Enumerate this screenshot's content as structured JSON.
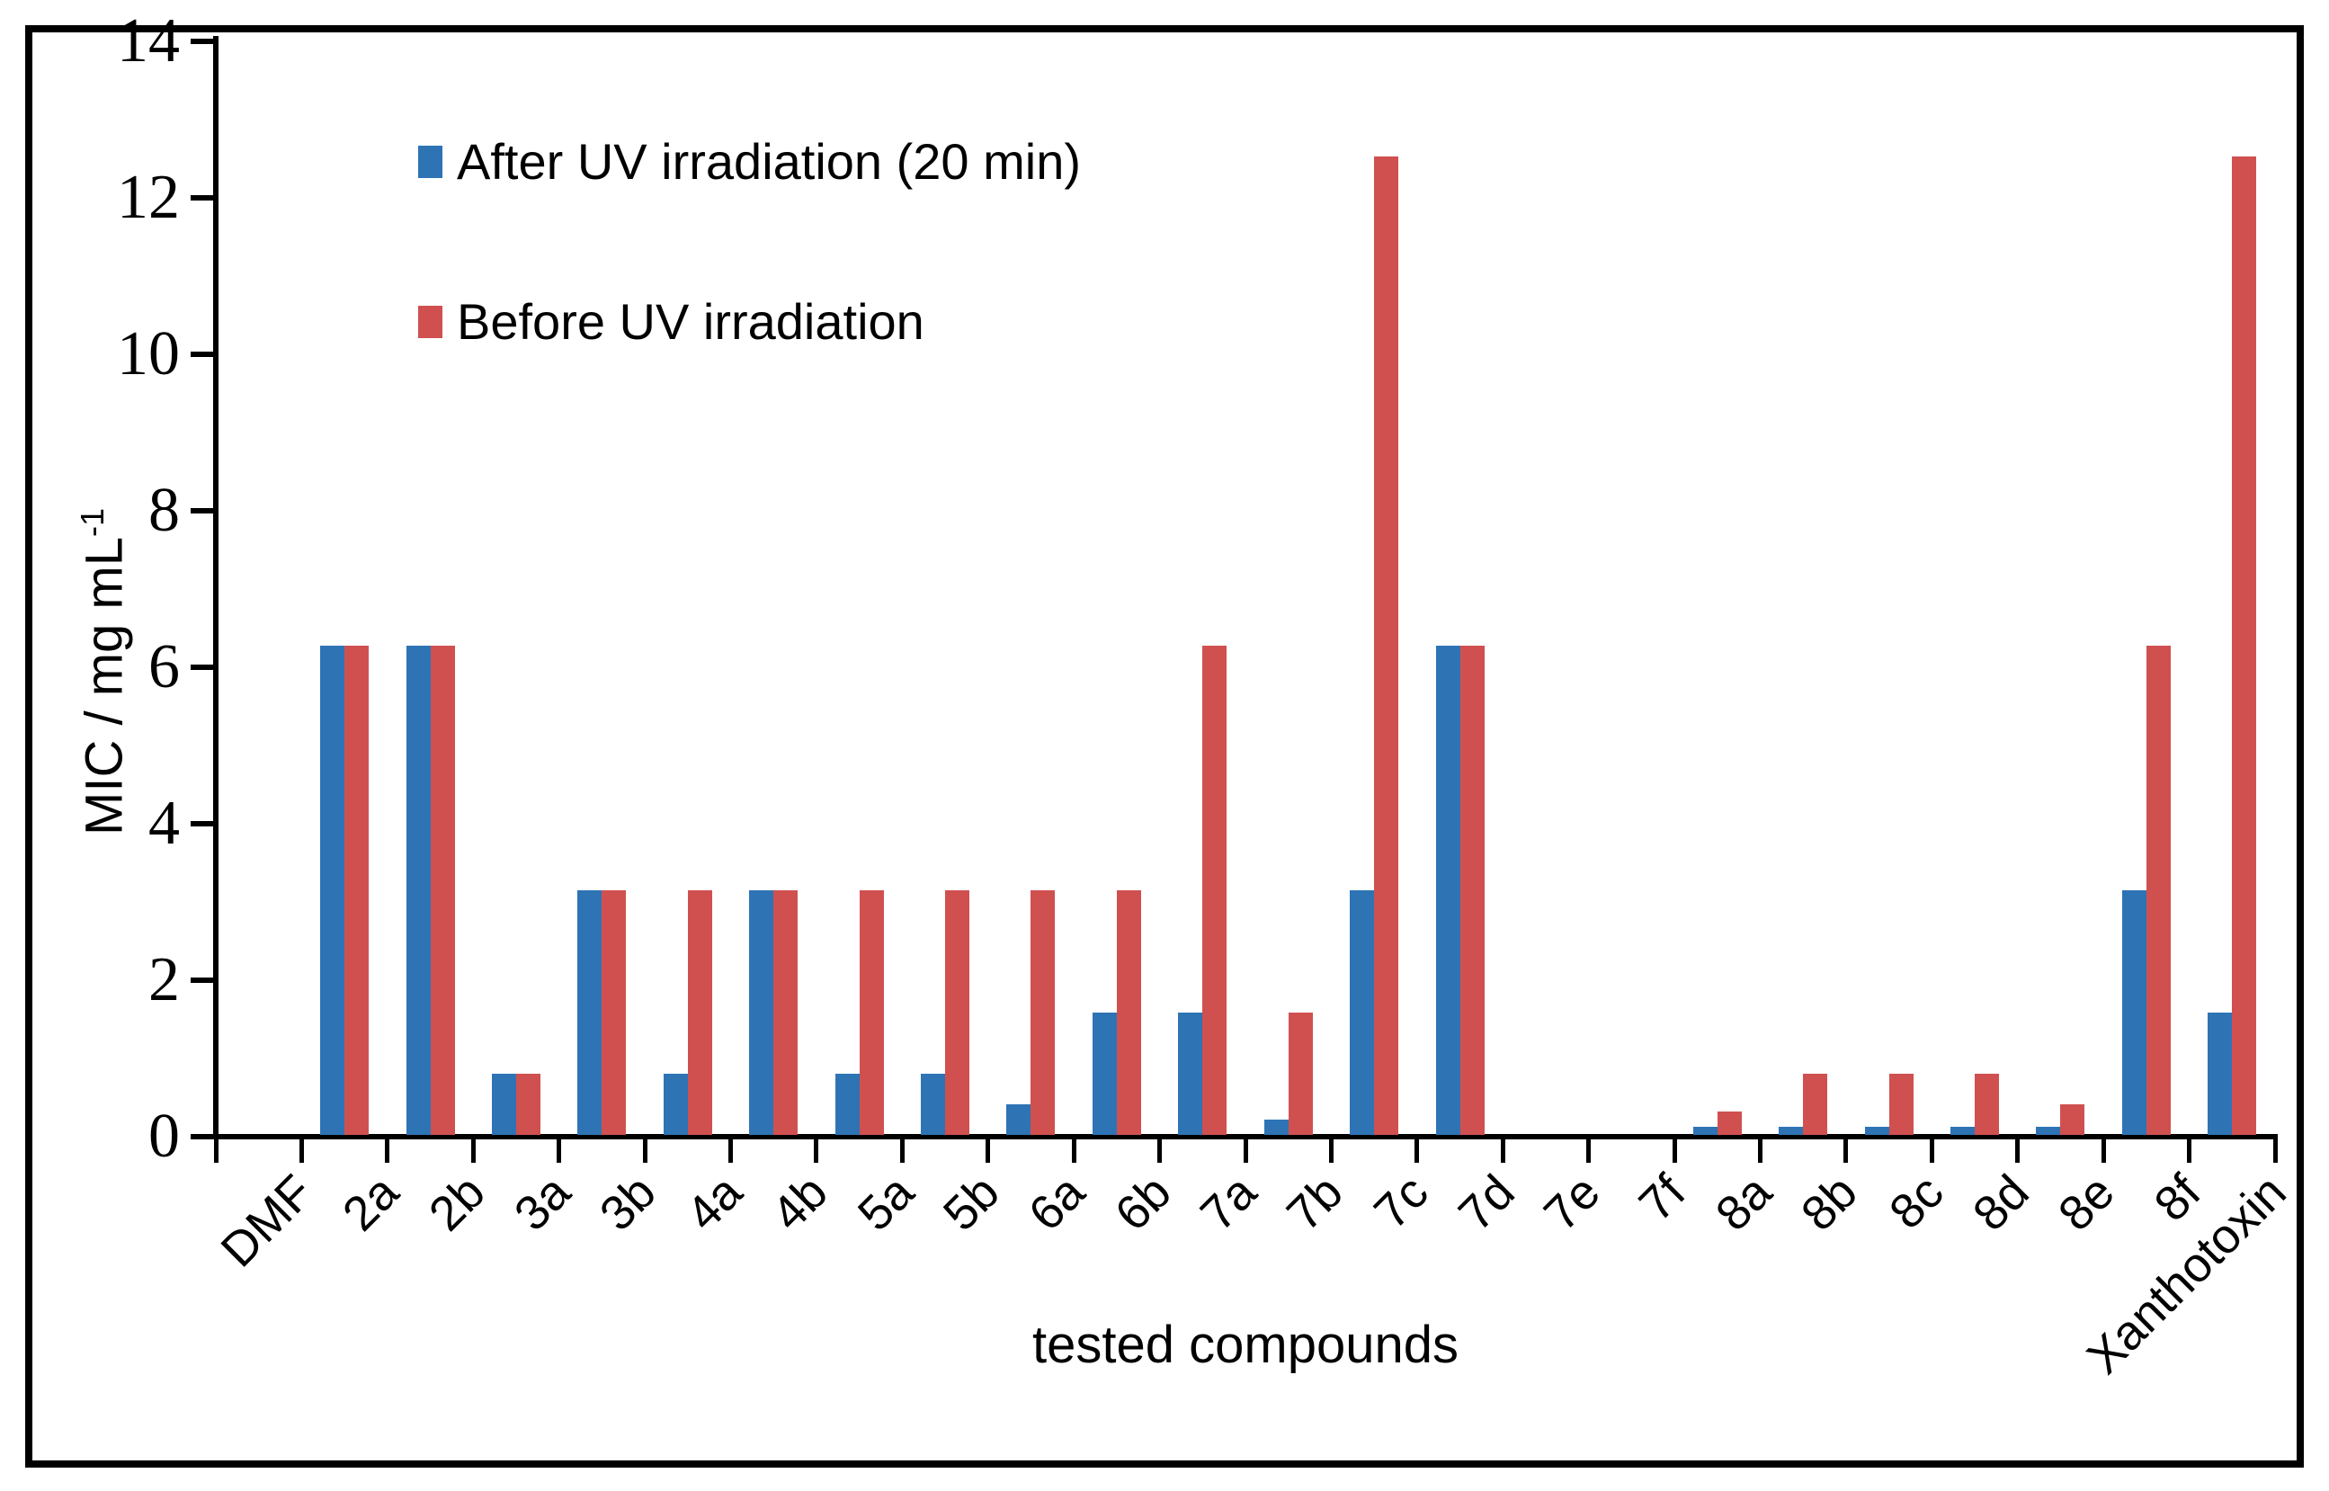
{
  "figure": {
    "background": "#ffffff",
    "frame_color": "#000000"
  },
  "legend": {
    "after_label": "After UV irradiation (20 min)",
    "before_label": "Before UV irradiation"
  },
  "chart_data": {
    "type": "bar",
    "title": "",
    "xlabel": "tested compounds",
    "ylabel": "MIC / mg mL",
    "ylabel_superscript": "-1",
    "ylim": [
      0,
      14
    ],
    "yticks": [
      0,
      2,
      4,
      6,
      8,
      10,
      12,
      14
    ],
    "grid": false,
    "legend_position": "top-left-inside",
    "categories": [
      "DMF",
      "2a",
      "2b",
      "3a",
      "3b",
      "4a",
      "4b",
      "5a",
      "5b",
      "6a",
      "6b",
      "7a",
      "7b",
      "7c",
      "7d",
      "7e",
      "7f",
      "8a",
      "8b",
      "8c",
      "8d",
      "8e",
      "8f",
      "Xanthotoxin"
    ],
    "series": [
      {
        "name": "After UV irradiation (20 min)",
        "color": "#2e74b5",
        "values": [
          0,
          6.25,
          6.25,
          0.78,
          3.125,
          0.78,
          3.125,
          0.78,
          0.78,
          0.39,
          1.56,
          1.56,
          0.195,
          3.125,
          6.25,
          0,
          0,
          0.1,
          0.1,
          0.1,
          0.1,
          0.1,
          3.125,
          1.56
        ]
      },
      {
        "name": "Before UV irradiation",
        "color": "#d05050",
        "values": [
          0,
          6.25,
          6.25,
          0.78,
          3.125,
          3.125,
          3.125,
          3.125,
          3.125,
          3.125,
          3.125,
          6.25,
          1.56,
          12.5,
          6.25,
          0,
          0,
          0.3,
          0.78,
          0.78,
          0.78,
          0.39,
          6.25,
          12.5
        ]
      }
    ]
  }
}
